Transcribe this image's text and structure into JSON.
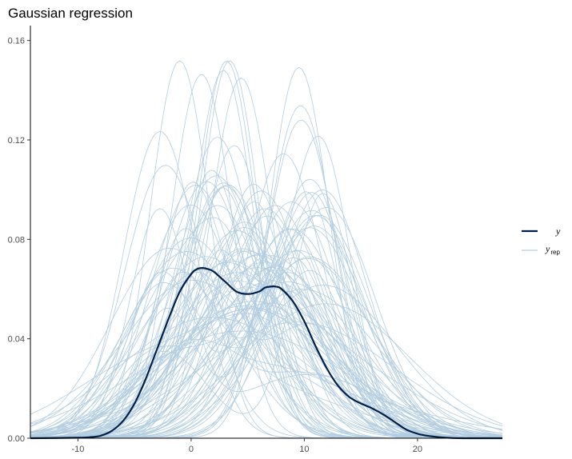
{
  "chart_data": {
    "type": "line",
    "title": "Gaussian regression",
    "xlabel": "",
    "ylabel": "",
    "xlim": [
      -14.2,
      27.5
    ],
    "ylim": [
      0,
      0.166
    ],
    "x_ticks": [
      -10,
      0,
      10,
      20
    ],
    "y_ticks": [
      0,
      0.04,
      0.08,
      0.12,
      0.16
    ],
    "x_tick_labels": [
      "-10",
      "0",
      "10",
      "20"
    ],
    "y_tick_labels": [
      "0.00",
      "0.04",
      "0.08",
      "0.12",
      "0.16"
    ],
    "grid": false,
    "legend_position": "right",
    "legend": {
      "y_label": "y",
      "yrep_label": "y",
      "yrep_subscript": "rep"
    },
    "colors": {
      "y": "#011f4b",
      "yrep": "#b3cde0"
    },
    "series": [
      {
        "name": "y",
        "x": [
          -14.2,
          -10,
          -9,
          -8,
          -7,
          -6,
          -5,
          -4,
          -3,
          -2,
          -1,
          0,
          0.5,
          1,
          1.5,
          2,
          3,
          4,
          5,
          6,
          6.5,
          7,
          7.5,
          8,
          9,
          10,
          11,
          12,
          13,
          14,
          15,
          16,
          17,
          18,
          19,
          20,
          21,
          22,
          23,
          24,
          25,
          27.5
        ],
        "y": [
          0,
          0.0002,
          0.0004,
          0.001,
          0.003,
          0.007,
          0.014,
          0.024,
          0.036,
          0.048,
          0.059,
          0.066,
          0.068,
          0.0685,
          0.068,
          0.067,
          0.063,
          0.059,
          0.058,
          0.059,
          0.0605,
          0.061,
          0.061,
          0.06,
          0.055,
          0.047,
          0.037,
          0.028,
          0.021,
          0.0165,
          0.014,
          0.012,
          0.0095,
          0.0065,
          0.0035,
          0.0018,
          0.0009,
          0.0004,
          0.0001,
          0,
          0,
          0
        ]
      }
    ],
    "yrep_count": 100
  }
}
